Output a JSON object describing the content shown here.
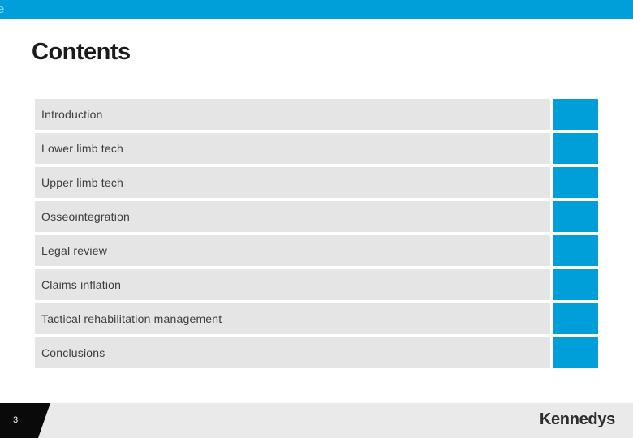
{
  "top_bar": {
    "clipped_text": "e"
  },
  "title": "Contents",
  "items": [
    "Introduction",
    "Lower limb tech",
    "Upper limb tech",
    "Osseointegration",
    "Legal review",
    "Claims inflation",
    "Tactical rehabilitation management",
    "Conclusions"
  ],
  "footer": {
    "page_number": "3",
    "logo_text": "Kennedys"
  },
  "colors": {
    "accent_blue": "#009FDA",
    "row_background": "#E5E5E5",
    "footer_background": "#EAEAEA",
    "page_tab_black": "#0A0A0A",
    "title_text": "#1B1B1B",
    "row_text": "#3D3D3D"
  }
}
